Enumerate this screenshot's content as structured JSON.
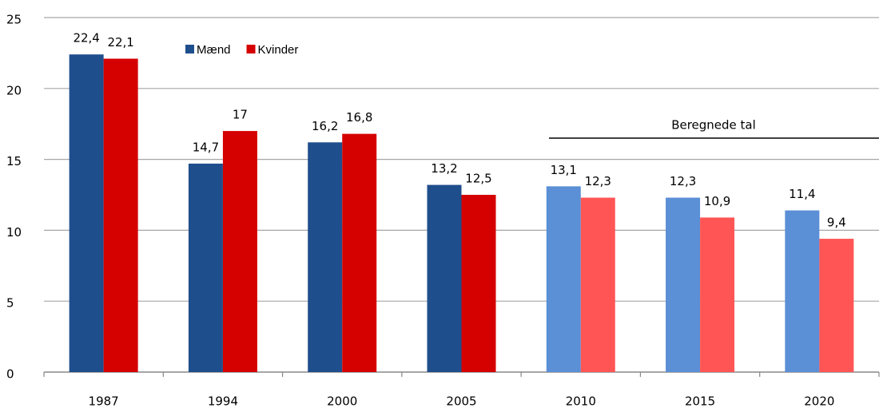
{
  "chart_data": {
    "type": "bar",
    "categories": [
      "1987",
      "1994",
      "2000",
      "2005",
      "2010",
      "2015",
      "2020"
    ],
    "series": [
      {
        "name": "Mænd",
        "color": "#1f4e8c",
        "colors": [
          "#1f4e8c",
          "#1f4e8c",
          "#1f4e8c",
          "#1f4e8c",
          "#5b8fd6",
          "#5b8fd6",
          "#5b8fd6"
        ],
        "values": [
          22.4,
          14.7,
          16.2,
          13.2,
          13.1,
          12.3,
          11.4
        ],
        "value_labels": [
          "22,4",
          "14,7",
          "16,2",
          "13,2",
          "13,1",
          "12,3",
          "11,4"
        ]
      },
      {
        "name": "Kvinder",
        "color": "#d50000",
        "colors": [
          "#d50000",
          "#d50000",
          "#d50000",
          "#d50000",
          "#ff5555",
          "#ff5555",
          "#ff5555"
        ],
        "values": [
          22.1,
          17,
          16.8,
          12.5,
          12.3,
          10.9,
          9.4
        ],
        "value_labels": [
          "22,1",
          "17",
          "16,8",
          "12,5",
          "12,3",
          "10,9",
          "9,4"
        ]
      }
    ],
    "annotations": [
      "Beregnede tal"
    ],
    "ylim": [
      0,
      25
    ],
    "yticks": [
      0,
      5,
      10,
      15,
      20,
      25
    ],
    "grid": true
  }
}
